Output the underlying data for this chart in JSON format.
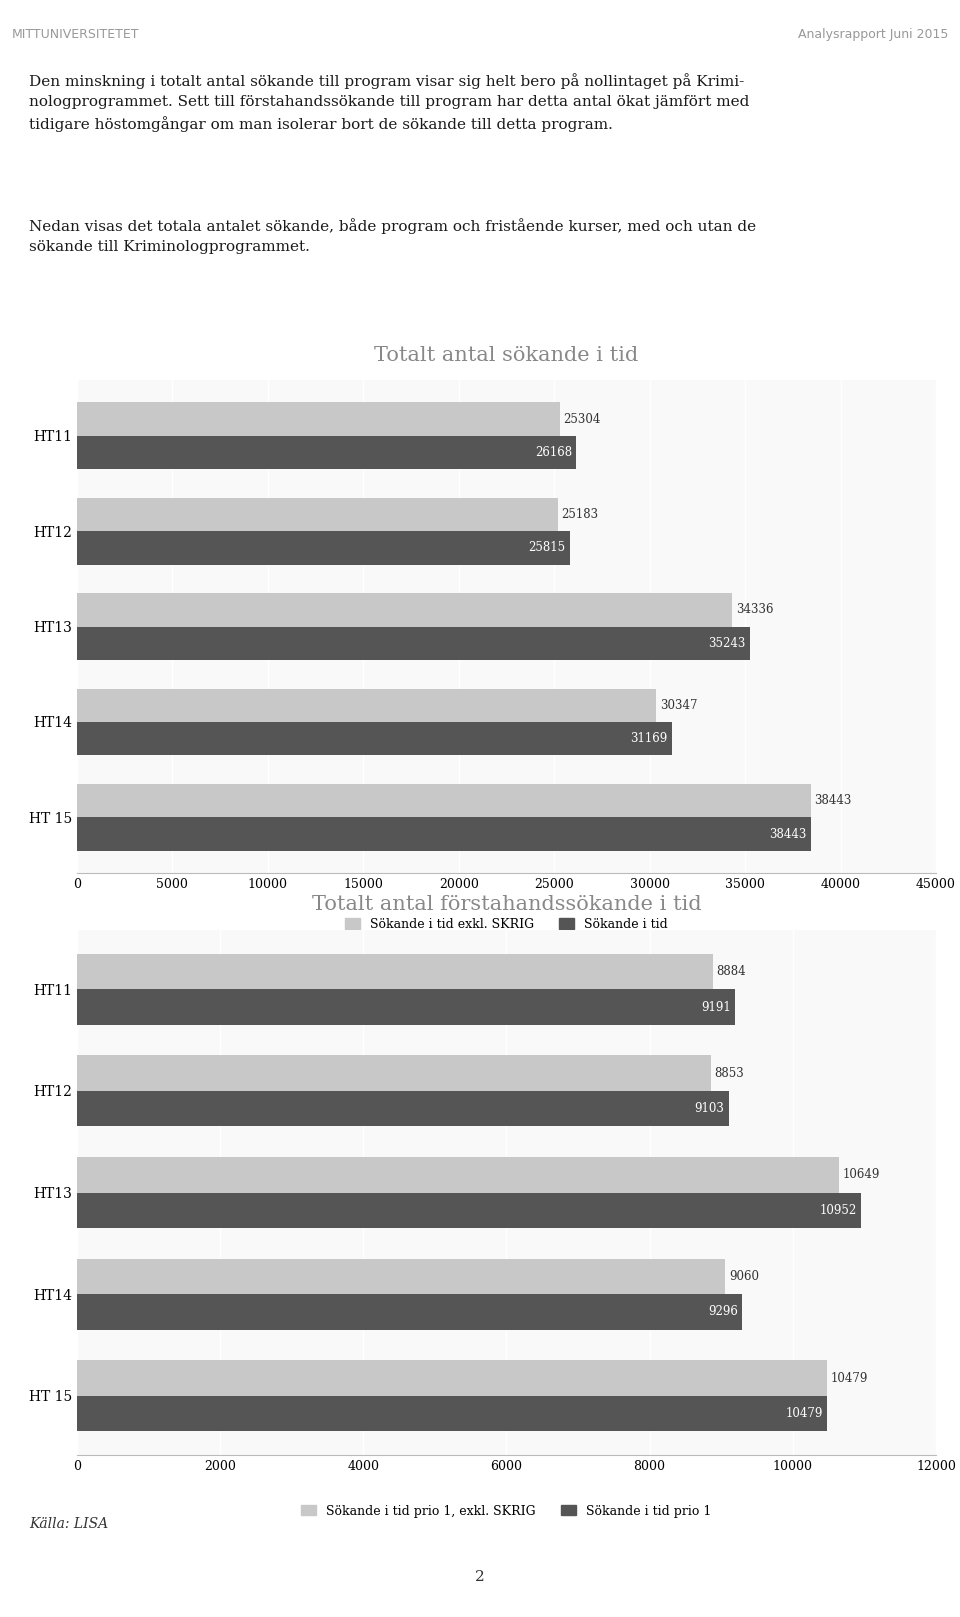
{
  "header_left": "MITTUNIVERSITETET",
  "header_right": "Analysrapport Juni 2015",
  "chart1": {
    "title": "Totalt antal sökande i tid",
    "categories": [
      "HT11",
      "HT12",
      "HT13",
      "HT14",
      "HT 15"
    ],
    "series1_label": "Sökande i tid exkl. SKRIG",
    "series1_values": [
      25304,
      25183,
      34336,
      30347,
      38443
    ],
    "series1_color": "#c8c8c8",
    "series2_label": "Sökande i tid",
    "series2_values": [
      26168,
      25815,
      35243,
      31169,
      38443
    ],
    "series2_color": "#555555",
    "xlim": [
      0,
      45000
    ],
    "xticks": [
      0,
      5000,
      10000,
      15000,
      20000,
      25000,
      30000,
      35000,
      40000,
      45000
    ]
  },
  "chart2": {
    "title": "Totalt antal förstahandssökande i tid",
    "categories": [
      "HT11",
      "HT12",
      "HT13",
      "HT14",
      "HT 15"
    ],
    "series1_label": "Sökande i tid prio 1, exkl. SKRIG",
    "series1_values": [
      8884,
      8853,
      10649,
      9060,
      10479
    ],
    "series1_color": "#c8c8c8",
    "series2_label": "Sökande i tid prio 1",
    "series2_values": [
      9191,
      9103,
      10952,
      9296,
      10479
    ],
    "series2_color": "#555555",
    "xlim": [
      0,
      12000
    ],
    "xticks": [
      0,
      2000,
      4000,
      6000,
      8000,
      10000,
      12000
    ]
  },
  "footer_text": "Källa: LISA",
  "page_number": "2",
  "bg_color": "#ffffff",
  "chart_bg_color": "#f9f9f9",
  "bar_height": 0.35,
  "title_fontsize": 15,
  "axis_fontsize": 9,
  "legend_fontsize": 9,
  "text1_lines": [
    "Den minskning i totalt antal sökande till program visar sig helt bero på nollintaget på Krimi-",
    "nologprogrammet. Sett till förstahandssökande till program har detta antal ökat jämfört med",
    "tidigare höstomgångar om man isolerar bort de sökande till detta program."
  ],
  "text2_lines": [
    "Nedan visas det totala antalet sökande, både program och fristående kurser, med och utan de",
    "sökande till Kriminologprogrammet."
  ]
}
